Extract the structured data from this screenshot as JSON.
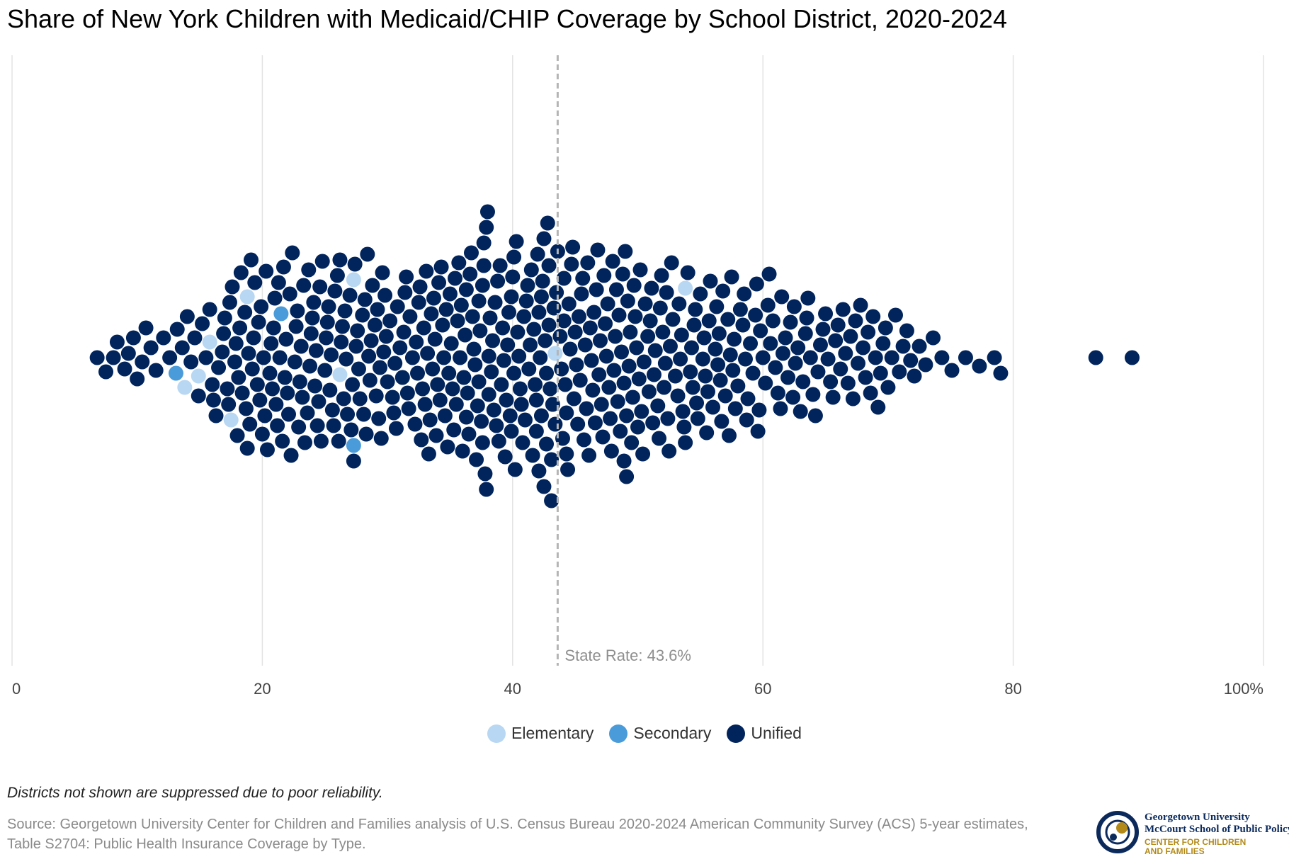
{
  "title": "Share of New York Children with Medicaid/CHIP Coverage by School District, 2020-2024",
  "chart_data": {
    "type": "scatter",
    "subtype": "beeswarm",
    "xlim": [
      0,
      100
    ],
    "ticks": [
      {
        "value": 0,
        "label": "0"
      },
      {
        "value": 20,
        "label": "20"
      },
      {
        "value": 40,
        "label": "40"
      },
      {
        "value": 60,
        "label": "60"
      },
      {
        "value": 80,
        "label": "80"
      },
      {
        "value": 100,
        "label": "100%"
      }
    ],
    "grid": true,
    "reference_line": {
      "value": 43.6,
      "label": "State Rate: 43.6%"
    },
    "legend_position": "bottom",
    "series": [
      {
        "name": "Elementary",
        "color": "#b8d7f2",
        "values": [
          13.8,
          14.9,
          15.8,
          17.5,
          18.8,
          26.2,
          43.4,
          53.8,
          27.3
        ]
      },
      {
        "name": "Secondary",
        "color": "#4a9bd9",
        "values": [
          13.1,
          21.5,
          27.3
        ]
      },
      {
        "name": "Unified",
        "color": "#00245b",
        "values": [
          6.8,
          7.5,
          8.1,
          8.4,
          9.0,
          9.3,
          9.7,
          10.0,
          10.4,
          10.7,
          11.1,
          11.5,
          12.1,
          12.6,
          13.2,
          13.6,
          14.0,
          14.3,
          14.6,
          14.9,
          15.2,
          15.5,
          15.8,
          16.0,
          16.3,
          16.5,
          16.8,
          17.0,
          17.2,
          17.4,
          17.6,
          17.8,
          18.0,
          18.2,
          18.4,
          18.6,
          18.8,
          19.0,
          19.2,
          19.4,
          19.6,
          19.8,
          20.0,
          20.2,
          20.4,
          20.6,
          20.8,
          21.0,
          21.2,
          21.4,
          21.6,
          21.8,
          22.0,
          22.2,
          22.4,
          22.6,
          22.8,
          23.0,
          23.2,
          23.4,
          23.6,
          23.8,
          24.0,
          24.2,
          24.4,
          24.6,
          24.8,
          25.0,
          25.2,
          25.4,
          25.6,
          25.8,
          26.0,
          26.2,
          26.4,
          26.6,
          26.8,
          27.0,
          27.2,
          27.4,
          27.6,
          27.8,
          28.0,
          28.2,
          28.4,
          28.6,
          28.8,
          29.0,
          29.2,
          29.4,
          29.6,
          29.8,
          30.0,
          30.2,
          30.4,
          30.6,
          30.8,
          31.0,
          31.2,
          31.4,
          31.6,
          31.8,
          32.0,
          32.2,
          32.4,
          32.6,
          32.8,
          33.0,
          33.2,
          33.4,
          33.6,
          33.8,
          34.0,
          34.2,
          34.4,
          34.6,
          34.8,
          35.0,
          35.2,
          35.4,
          35.6,
          35.8,
          36.0,
          36.2,
          36.4,
          36.6,
          36.8,
          37.0,
          37.2,
          37.4,
          37.6,
          37.8,
          38.0,
          38.2,
          38.4,
          38.6,
          38.8,
          39.0,
          39.2,
          39.4,
          39.6,
          39.8,
          40.0,
          40.2,
          40.4,
          40.6,
          40.8,
          41.0,
          41.2,
          41.4,
          41.6,
          41.8,
          42.0,
          42.2,
          42.4,
          42.6,
          42.8,
          43.0,
          43.2,
          43.4,
          43.6,
          43.8,
          44.0,
          44.2,
          44.4,
          44.6,
          44.8,
          45.0,
          45.2,
          45.4,
          45.6,
          45.8,
          46.0,
          46.2,
          46.4,
          46.6,
          46.8,
          47.0,
          47.2,
          47.4,
          47.6,
          47.8,
          48.0,
          48.2,
          48.4,
          48.6,
          48.8,
          49.0,
          49.2,
          49.4,
          49.6,
          49.8,
          50.0,
          50.2,
          50.4,
          50.6,
          50.8,
          51.0,
          51.2,
          51.4,
          51.6,
          51.8,
          52.0,
          52.2,
          52.4,
          52.6,
          52.8,
          53.0,
          53.2,
          53.4,
          53.6,
          53.8,
          54.0,
          54.2,
          54.4,
          54.6,
          54.8,
          55.0,
          55.2,
          55.4,
          55.6,
          55.8,
          56.0,
          56.2,
          56.4,
          56.6,
          56.8,
          57.0,
          57.2,
          57.4,
          57.6,
          57.8,
          58.0,
          58.2,
          58.4,
          58.6,
          58.8,
          59.0,
          59.2,
          59.4,
          59.6,
          59.8,
          60.0,
          60.2,
          60.4,
          60.6,
          60.8,
          61.0,
          61.2,
          61.4,
          61.6,
          61.8,
          62.0,
          62.2,
          62.4,
          62.6,
          62.8,
          63.0,
          63.2,
          63.4,
          63.6,
          63.8,
          64.0,
          64.2,
          64.4,
          64.6,
          64.8,
          65.0,
          65.2,
          65.4,
          65.6,
          65.8,
          66.0,
          66.2,
          66.4,
          66.6,
          66.8,
          67.0,
          67.2,
          67.4,
          67.6,
          67.8,
          68.0,
          68.2,
          68.4,
          68.6,
          68.8,
          69.0,
          69.2,
          69.4,
          69.6,
          69.8,
          70.0,
          70.3,
          70.6,
          70.9,
          71.2,
          71.5,
          71.8,
          72.1,
          72.5,
          73.0,
          73.6,
          74.3,
          75.1,
          76.2,
          77.3,
          78.5,
          79.0,
          86.6,
          89.5,
          30.5,
          31.5,
          32.5,
          33.5,
          34.5,
          35.5,
          36.5,
          37.5,
          38.5,
          39.5,
          40.5,
          41.5,
          42.5,
          43.5,
          44.5,
          45.5,
          46.5,
          47.5,
          48.5,
          49.5,
          29.5,
          30.7,
          31.7,
          32.7,
          33.7,
          34.7,
          35.7,
          36.7,
          37.7,
          38.7,
          39.7,
          40.7,
          41.7,
          42.7,
          44.7,
          45.7,
          46.7,
          47.7,
          48.7,
          49.7,
          31.3,
          32.3,
          33.3,
          34.3,
          35.3,
          36.3,
          37.3,
          38.3,
          39.3,
          40.3,
          41.3,
          42.3,
          43.3,
          44.3,
          45.3,
          46.3,
          47.3,
          48.3,
          49.3,
          50.3,
          32.9,
          33.9,
          34.9,
          35.9,
          36.9,
          37.9,
          38.9,
          39.9,
          40.9,
          41.9,
          42.9,
          43.9,
          44.9,
          45.9,
          46.9,
          47.9,
          48.9,
          49.9,
          50.9,
          51.9,
          33.1,
          34.1,
          35.1,
          36.1,
          37.1,
          38.1,
          39.1,
          40.1,
          41.1,
          42.1,
          43.1,
          44.1,
          45.1,
          46.1,
          47.1,
          48.1,
          49.1,
          50.1,
          51.1,
          52.1,
          36.3,
          37.3,
          37.6,
          37.7,
          37.9,
          38.1,
          39.9,
          40.1,
          41.9,
          42.1,
          42.3,
          42.5,
          42.7,
          42.9,
          43.1,
          44.1,
          44.3,
          48.9,
          49.1,
          50.5,
          18.3,
          19.3,
          20.3,
          21.3,
          22.3,
          23.3,
          24.3,
          25.3,
          26.3,
          27.3,
          28.3,
          29.3,
          18.7,
          19.7,
          20.7,
          21.7,
          22.7,
          23.7,
          24.7,
          25.7,
          26.7,
          27.7,
          28.7,
          29.7,
          16.1,
          16.9,
          17.3,
          17.9,
          18.1,
          18.9,
          19.1,
          19.9,
          20.1,
          20.9,
          21.1,
          21.9,
          22.1,
          22.9,
          23.1,
          23.9,
          52.5,
          53.5,
          54.5,
          55.5,
          56.5,
          57.5,
          58.5,
          59.5,
          60.5,
          61.5,
          62.5,
          63.5,
          52.7,
          53.7,
          54.7,
          55.7,
          56.7,
          57.7,
          58.7,
          59.7,
          51.3,
          51.7,
          52.3,
          53.3,
          54.3,
          55.3,
          56.3,
          57.3,
          26.5,
          27.5,
          28.5,
          29.1,
          25.5,
          24.5,
          24.1,
          25.1,
          26.1,
          27.1,
          28.1,
          29.9
        ]
      }
    ]
  },
  "legend": [
    {
      "label": "Elementary",
      "color": "#b8d7f2"
    },
    {
      "label": "Secondary",
      "color": "#4a9bd9"
    },
    {
      "label": "Unified",
      "color": "#00245b"
    }
  ],
  "note": "Districts not shown are suppressed due to poor reliability.",
  "source": "Source: Georgetown University Center for Children and Families analysis of U.S. Census Bureau 2020-2024 American Community Survey (ACS) 5-year estimates, Table S2704: Public Health Insurance Coverage by Type.",
  "logo": {
    "line1": "Georgetown University",
    "line2": "McCourt School of Public Policy",
    "line3": "CENTER FOR CHILDREN",
    "line4": "AND FAMILIES"
  }
}
